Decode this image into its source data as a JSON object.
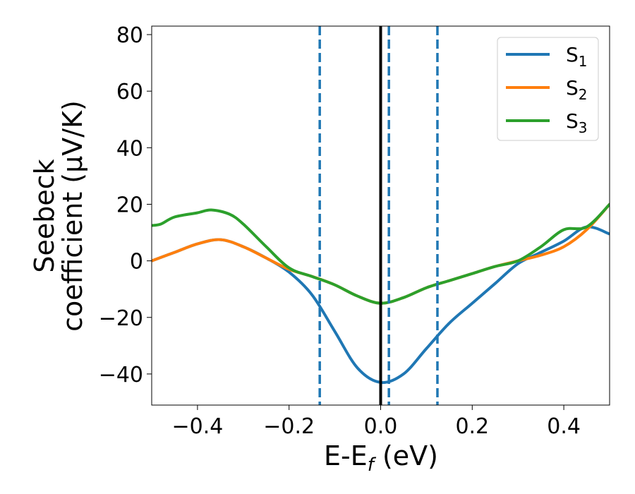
{
  "chart_data": {
    "type": "line",
    "xlabel": {
      "main": "E-E",
      "sub": "f",
      "unit": " (eV)"
    },
    "ylabel": {
      "line1": "Seebeck",
      "line2": "coefficient  (μV/K)"
    },
    "xlim": [
      -0.5,
      0.5
    ],
    "ylim": [
      -51,
      83
    ],
    "x_ticks": [
      -0.4,
      -0.2,
      0.0,
      0.2,
      0.4
    ],
    "x_tick_labels": [
      "−0.4",
      "−0.2",
      "0.0",
      "0.2",
      "0.4"
    ],
    "y_ticks": [
      -40,
      -20,
      0,
      20,
      40,
      60,
      80
    ],
    "y_tick_labels": [
      "−40",
      "−20",
      "0",
      "20",
      "40",
      "60",
      "80"
    ],
    "grid": false,
    "legend_placement": "top-right",
    "series": [
      {
        "name": "S",
        "name_sub": "1",
        "color": "#1f77b4",
        "x": [
          -0.5,
          -0.45,
          -0.4,
          -0.35,
          -0.3,
          -0.25,
          -0.2,
          -0.15,
          -0.1,
          -0.05,
          0.0,
          0.05,
          0.1,
          0.15,
          0.2,
          0.25,
          0.3,
          0.35,
          0.4,
          0.45,
          0.5
        ],
        "y": [
          0,
          3,
          6,
          7.5,
          5,
          1,
          -4,
          -12,
          -25,
          -38,
          -43,
          -40,
          -31,
          -22,
          -15,
          -8,
          -1,
          3,
          7,
          12,
          9.5
        ]
      },
      {
        "name": "S",
        "name_sub": "2",
        "color": "#ff7f0e",
        "x": [
          -0.5,
          -0.45,
          -0.4,
          -0.35,
          -0.3,
          -0.25,
          -0.2,
          -0.15,
          -0.1,
          -0.05,
          0.0,
          0.05,
          0.1,
          0.15,
          0.2,
          0.25,
          0.3,
          0.35,
          0.4,
          0.45,
          0.5
        ],
        "y": [
          0,
          3,
          6,
          7.5,
          5,
          1,
          -3,
          -5.5,
          -8.5,
          -12.5,
          -15,
          -13,
          -9.5,
          -7,
          -4.5,
          -2,
          0,
          2,
          5,
          11,
          20
        ]
      },
      {
        "name": "S",
        "name_sub": "3",
        "color": "#2ca02c",
        "x": [
          -0.5,
          -0.48,
          -0.45,
          -0.4,
          -0.37,
          -0.33,
          -0.3,
          -0.25,
          -0.2,
          -0.15,
          -0.1,
          -0.05,
          0.0,
          0.05,
          0.1,
          0.15,
          0.2,
          0.25,
          0.3,
          0.35,
          0.4,
          0.45,
          0.5
        ],
        "y": [
          12.5,
          13,
          15.5,
          17,
          18,
          16.5,
          13,
          5,
          -2.5,
          -5.5,
          -8.5,
          -12.5,
          -15,
          -13,
          -9.5,
          -7,
          -4.5,
          -2,
          0,
          5,
          11,
          12,
          20
        ]
      }
    ],
    "vertical_lines": [
      {
        "x": 0.0,
        "style": "solid",
        "color": "#000000"
      },
      {
        "x": -0.133,
        "style": "dashed",
        "color": "#1f77b4"
      },
      {
        "x": 0.018,
        "style": "dashed",
        "color": "#1f77b4"
      },
      {
        "x": 0.124,
        "style": "dashed",
        "color": "#1f77b4"
      }
    ]
  }
}
